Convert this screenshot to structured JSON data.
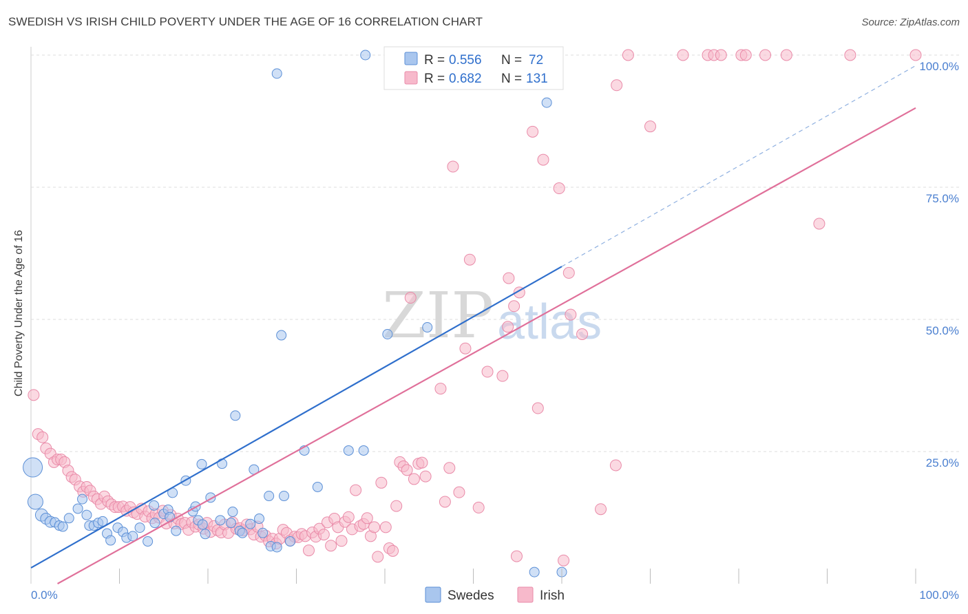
{
  "header": {
    "title": "SWEDISH VS IRISH CHILD POVERTY UNDER THE AGE OF 16 CORRELATION CHART",
    "source": "Source: ZipAtlas.com"
  },
  "watermark": {
    "zip": "ZIP",
    "atlas": "atlas"
  },
  "colors": {
    "swedes_fill": "#a9c6ee",
    "swedes_stroke": "#5b8fd6",
    "swedes_line": "#2f6fcc",
    "irish_fill": "#f7b9cb",
    "irish_stroke": "#e98aa8",
    "irish_line": "#e0709a",
    "grid": "#dddddd",
    "tick_label": "#4a7fd0"
  },
  "legend": {
    "swedes": {
      "r_label": "R =",
      "r_value": "0.556",
      "n_label": "N =",
      "n_value": "72"
    },
    "irish": {
      "r_label": "R =",
      "r_value": "0.682",
      "n_label": "N =",
      "n_value": "131"
    }
  },
  "chart_data": {
    "type": "scatter",
    "title": "SWEDISH VS IRISH CHILD POVERTY UNDER THE AGE OF 16 CORRELATION CHART",
    "xlabel": "",
    "ylabel": "Child Poverty Under the Age of 16",
    "xlim": [
      0,
      100
    ],
    "ylim": [
      0,
      100
    ],
    "x_tick_labels": [
      "0.0%",
      "100.0%"
    ],
    "y_tick_labels": [
      "25.0%",
      "50.0%",
      "75.0%",
      "100.0%"
    ],
    "y_ticks": [
      25,
      50,
      75,
      100
    ],
    "grid": true,
    "legend_position": "top-center",
    "series": [
      {
        "name": "Swedes",
        "trend": {
          "x": [
            0,
            60
          ],
          "y": [
            3,
            60
          ],
          "extension_to": [
            100,
            98
          ]
        },
        "points": [
          [
            0.2,
            22,
            14
          ],
          [
            0.5,
            15.5,
            11
          ],
          [
            1.2,
            13,
            9
          ],
          [
            1.7,
            12.3,
            8
          ],
          [
            2.2,
            11.7,
            8
          ],
          [
            2.7,
            11.6,
            7
          ],
          [
            3.2,
            11,
            7
          ],
          [
            3.6,
            10.8,
            7
          ],
          [
            4.3,
            12.4,
            7
          ],
          [
            5.3,
            14.2,
            7
          ],
          [
            5.8,
            16,
            7
          ],
          [
            6.3,
            13,
            7
          ],
          [
            6.6,
            11,
            7
          ],
          [
            7.1,
            11,
            7
          ],
          [
            7.6,
            11.5,
            7
          ],
          [
            8.1,
            11.8,
            7
          ],
          [
            8.6,
            9.5,
            7
          ],
          [
            9.0,
            8.2,
            7
          ],
          [
            9.8,
            10.6,
            7
          ],
          [
            10.4,
            9.8,
            7
          ],
          [
            10.8,
            8.7,
            7
          ],
          [
            11.5,
            9,
            7
          ],
          [
            12.3,
            10.6,
            7
          ],
          [
            13.2,
            8,
            7
          ],
          [
            13.9,
            14.8,
            7
          ],
          [
            14.0,
            11.5,
            7
          ],
          [
            15.0,
            13.2,
            7
          ],
          [
            15.5,
            14,
            7
          ],
          [
            15.7,
            12.6,
            7
          ],
          [
            16.0,
            17.2,
            7
          ],
          [
            16.4,
            10,
            7
          ],
          [
            17.5,
            19.5,
            7
          ],
          [
            18.3,
            13.7,
            7
          ],
          [
            18.6,
            14.6,
            7
          ],
          [
            18.9,
            12,
            7
          ],
          [
            19.3,
            22.6,
            7
          ],
          [
            19.4,
            11.2,
            7
          ],
          [
            19.7,
            9.4,
            7
          ],
          [
            20.3,
            16.3,
            7
          ],
          [
            21.4,
            12,
            7
          ],
          [
            21.6,
            22.7,
            7
          ],
          [
            22.6,
            11.5,
            7
          ],
          [
            22.8,
            13.6,
            7
          ],
          [
            23.1,
            31.8,
            7
          ],
          [
            23.6,
            10,
            7
          ],
          [
            23.9,
            9.6,
            7
          ],
          [
            24.8,
            11.3,
            7
          ],
          [
            25.2,
            21.6,
            7
          ],
          [
            25.8,
            12.3,
            7
          ],
          [
            26.2,
            9.6,
            7
          ],
          [
            26.9,
            16.6,
            7
          ],
          [
            27.1,
            7.1,
            7
          ],
          [
            27.8,
            6.9,
            7
          ],
          [
            28.3,
            47,
            7
          ],
          [
            28.6,
            16.6,
            7
          ],
          [
            29.3,
            8,
            7
          ],
          [
            30.9,
            25.2,
            7
          ],
          [
            32.4,
            18.3,
            7
          ],
          [
            35.9,
            25.2,
            7
          ],
          [
            37.6,
            25.2,
            7
          ],
          [
            40.3,
            47.2,
            7
          ],
          [
            44.8,
            48.5,
            7
          ],
          [
            27.8,
            96.5,
            7
          ],
          [
            37.8,
            100,
            7
          ],
          [
            43.5,
            100,
            7
          ],
          [
            55.0,
            100,
            7
          ],
          [
            58.3,
            91,
            7
          ],
          [
            56.3,
            100,
            7
          ],
          [
            56.9,
            2.2,
            7
          ],
          [
            60.0,
            2.2,
            7
          ],
          [
            58.8,
            100,
            7
          ],
          [
            59.6,
            100,
            7
          ]
        ]
      },
      {
        "name": "Irish",
        "trend": {
          "x": [
            3,
            100
          ],
          "y": [
            0,
            90
          ]
        },
        "points": [
          [
            0.3,
            35.7,
            8
          ],
          [
            0.8,
            28.3,
            8
          ],
          [
            1.3,
            27.7,
            8
          ],
          [
            1.7,
            25.6,
            8
          ],
          [
            2.2,
            24.6,
            8
          ],
          [
            2.6,
            23,
            8
          ],
          [
            3.0,
            23.5,
            8
          ],
          [
            3.4,
            23.5,
            8
          ],
          [
            3.8,
            23,
            8
          ],
          [
            4.2,
            21.4,
            8
          ],
          [
            4.6,
            20.2,
            8
          ],
          [
            5.0,
            19.7,
            8
          ],
          [
            5.5,
            18.4,
            8
          ],
          [
            5.9,
            17.4,
            8
          ],
          [
            6.3,
            18.3,
            8
          ],
          [
            6.7,
            17.6,
            8
          ],
          [
            7.1,
            16.5,
            8
          ],
          [
            7.5,
            16,
            8
          ],
          [
            7.9,
            15.1,
            8
          ],
          [
            8.3,
            16.5,
            8
          ],
          [
            8.7,
            15.6,
            8
          ],
          [
            9.1,
            15,
            8
          ],
          [
            9.5,
            14.5,
            8
          ],
          [
            9.9,
            14.5,
            8
          ],
          [
            10.4,
            14.6,
            8
          ],
          [
            10.8,
            13.8,
            8
          ],
          [
            11.2,
            14.5,
            8
          ],
          [
            11.6,
            13.5,
            8
          ],
          [
            12.0,
            13.2,
            8
          ],
          [
            12.5,
            14.2,
            8
          ],
          [
            12.9,
            12.7,
            8
          ],
          [
            13.3,
            13.7,
            8
          ],
          [
            13.7,
            12.4,
            8
          ],
          [
            14.1,
            13.2,
            8
          ],
          [
            14.5,
            12.5,
            8
          ],
          [
            14.9,
            13.8,
            8
          ],
          [
            15.3,
            11.4,
            8
          ],
          [
            15.8,
            13,
            8
          ],
          [
            16.2,
            11.4,
            8
          ],
          [
            16.6,
            12.3,
            8
          ],
          [
            17.0,
            11.3,
            8
          ],
          [
            17.4,
            11.5,
            8
          ],
          [
            17.8,
            10.2,
            8
          ],
          [
            18.2,
            11.6,
            8
          ],
          [
            18.6,
            10.8,
            8
          ],
          [
            19.0,
            11.2,
            8
          ],
          [
            19.5,
            10.4,
            8
          ],
          [
            19.9,
            11.5,
            8
          ],
          [
            20.3,
            9.8,
            8
          ],
          [
            20.7,
            10.9,
            8
          ],
          [
            21.1,
            10.1,
            8
          ],
          [
            21.5,
            9.7,
            8
          ],
          [
            21.9,
            11.2,
            8
          ],
          [
            22.3,
            9.6,
            8
          ],
          [
            22.8,
            11.6,
            8
          ],
          [
            23.2,
            10.4,
            8
          ],
          [
            23.6,
            10.5,
            8
          ],
          [
            24.0,
            10.1,
            8
          ],
          [
            24.4,
            11.2,
            8
          ],
          [
            24.8,
            10.3,
            8
          ],
          [
            25.2,
            9.3,
            8
          ],
          [
            25.6,
            10.8,
            8
          ],
          [
            26.0,
            8.9,
            8
          ],
          [
            26.5,
            9.1,
            8
          ],
          [
            26.9,
            8,
            8
          ],
          [
            27.3,
            8.5,
            8
          ],
          [
            27.7,
            7.6,
            8
          ],
          [
            28.1,
            8.5,
            8
          ],
          [
            28.5,
            10.2,
            8
          ],
          [
            28.9,
            9.6,
            8
          ],
          [
            29.3,
            8.2,
            8
          ],
          [
            29.8,
            8.9,
            8
          ],
          [
            30.2,
            8.8,
            8
          ],
          [
            30.6,
            9.4,
            8
          ],
          [
            31.0,
            9,
            8
          ],
          [
            31.4,
            6.3,
            8
          ],
          [
            31.8,
            9.7,
            8
          ],
          [
            32.2,
            8.9,
            8
          ],
          [
            32.6,
            10.4,
            8
          ],
          [
            33.1,
            9.3,
            8
          ],
          [
            33.5,
            11.6,
            8
          ],
          [
            33.9,
            7.2,
            8
          ],
          [
            34.3,
            12.3,
            8
          ],
          [
            34.7,
            10.7,
            8
          ],
          [
            35.1,
            8.1,
            8
          ],
          [
            35.5,
            11.7,
            8
          ],
          [
            35.9,
            12.6,
            8
          ],
          [
            36.3,
            10.3,
            8
          ],
          [
            36.7,
            17.7,
            8
          ],
          [
            37.2,
            10.9,
            8
          ],
          [
            37.6,
            11.3,
            8
          ],
          [
            38.0,
            12.4,
            8
          ],
          [
            38.4,
            9,
            8
          ],
          [
            38.8,
            10.7,
            8
          ],
          [
            39.2,
            5.1,
            8
          ],
          [
            39.6,
            19.1,
            8
          ],
          [
            40.1,
            10.7,
            8
          ],
          [
            40.5,
            6.7,
            8
          ],
          [
            40.9,
            6.2,
            8
          ],
          [
            41.3,
            14.7,
            8
          ],
          [
            41.7,
            23,
            8
          ],
          [
            42.1,
            22.2,
            8
          ],
          [
            42.5,
            21.5,
            8
          ],
          [
            42.9,
            54.1,
            8
          ],
          [
            43.3,
            19.8,
            8
          ],
          [
            43.8,
            22.7,
            8
          ],
          [
            44.2,
            22.9,
            8
          ],
          [
            44.6,
            20.3,
            8
          ],
          [
            46.3,
            36.9,
            8
          ],
          [
            46.8,
            15.5,
            8
          ],
          [
            47.3,
            21.9,
            8
          ],
          [
            48.4,
            17.3,
            8
          ],
          [
            49.1,
            44.5,
            8
          ],
          [
            49.6,
            61.3,
            8
          ],
          [
            50.6,
            14.4,
            8
          ],
          [
            51.6,
            40.1,
            8
          ],
          [
            53.3,
            39.3,
            8
          ],
          [
            54.9,
            5.2,
            8
          ],
          [
            54.0,
            57.8,
            8
          ],
          [
            54.6,
            52.5,
            8
          ],
          [
            55.2,
            55.1,
            8
          ],
          [
            56.7,
            85.5,
            8
          ],
          [
            57.3,
            33.2,
            8
          ],
          [
            57.9,
            80.2,
            8
          ],
          [
            59.7,
            74.8,
            8
          ],
          [
            60.2,
            4.4,
            8
          ],
          [
            61.0,
            50.9,
            8
          ],
          [
            62.3,
            47.2,
            8
          ],
          [
            64.4,
            14.1,
            8
          ],
          [
            66.1,
            22.4,
            8
          ],
          [
            67.5,
            100,
            8
          ],
          [
            66.2,
            94.3,
            8
          ],
          [
            73.7,
            100,
            8
          ],
          [
            76.5,
            100,
            8
          ],
          [
            77.2,
            100,
            8
          ],
          [
            78.0,
            100,
            8
          ],
          [
            80.3,
            100,
            8
          ],
          [
            80.8,
            100,
            8
          ],
          [
            83.0,
            100,
            8
          ],
          [
            85.4,
            100,
            8
          ],
          [
            89.1,
            68.1,
            8
          ],
          [
            92.6,
            100,
            8
          ],
          [
            100,
            100,
            8
          ],
          [
            47.7,
            78.9,
            8
          ],
          [
            53.9,
            48.6,
            8
          ],
          [
            70.0,
            86.5,
            8
          ],
          [
            60.8,
            58.8,
            8
          ]
        ]
      }
    ]
  }
}
